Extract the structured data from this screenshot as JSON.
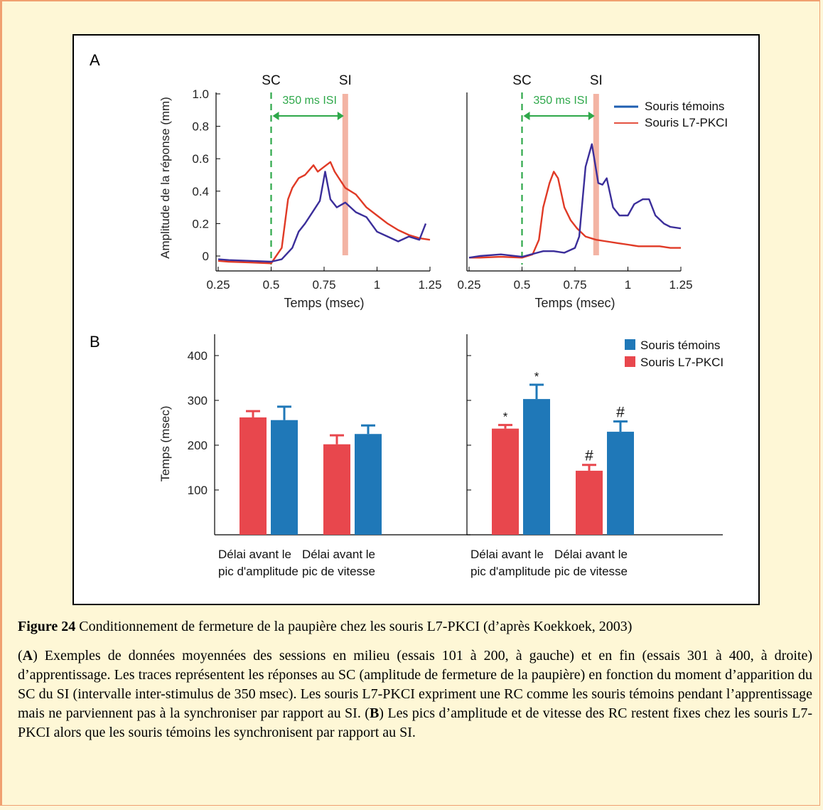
{
  "figure": {
    "panel_a_letter": "A",
    "panel_b_letter": "B",
    "cs_label": "SC",
    "us_label": "SI",
    "isi_label": "350 ms ISI"
  },
  "caption": {
    "title_bold": "Figure 24",
    "title_text": " Conditionnement de fermeture de la paupière chez les souris L7-PKCI (d’après Koekkoek, 2003)",
    "p1": "(",
    "a_letter": "A",
    "p2": ") Exemples de données moyennées des sessions en milieu (essais 101 à 200, à gauche) et en fin (essais 301 à 400, à droite) d’apprentissage. Les traces représentent les réponses au SC (amplitude de fermeture de la paupière) en fonction du moment d’apparition du SC du SI (intervalle inter-stimulus de 350 msec). Les souris L7-PKCI expriment une RC comme les souris témoins pendant l’apprentissage mais ne parviennent pas à la synchroniser par rapport au SI. (",
    "b_letter": "B",
    "p3": ") Les pics d’amplitude et de vitesse des RC restent fixes chez les souris L7-PKCI alors que les souris témoins les synchronisent par rapport au SI."
  },
  "chart_data": [
    {
      "type": "line",
      "panel": "A-left",
      "xlabel": "Temps (msec)",
      "ylabel": "Amplitude de la réponse (mm)",
      "xlim": [
        0.25,
        1.25
      ],
      "ylim": [
        -0.05,
        1.0
      ],
      "xticks": [
        "0.25",
        "0.5",
        "0.75",
        "1",
        "1.25"
      ],
      "yticks": [
        "1.0",
        "0.8",
        "0.6",
        "0.4",
        "0.2",
        "0"
      ],
      "cs_time": 0.5,
      "us_time": 0.85,
      "series": [
        {
          "name": "Souris témoins",
          "color": "#3b2e9a",
          "points": [
            [
              0.25,
              -0.02
            ],
            [
              0.3,
              -0.025
            ],
            [
              0.4,
              -0.03
            ],
            [
              0.5,
              -0.035
            ],
            [
              0.55,
              -0.02
            ],
            [
              0.6,
              0.05
            ],
            [
              0.63,
              0.15
            ],
            [
              0.66,
              0.2
            ],
            [
              0.7,
              0.28
            ],
            [
              0.73,
              0.34
            ],
            [
              0.755,
              0.52
            ],
            [
              0.78,
              0.35
            ],
            [
              0.81,
              0.3
            ],
            [
              0.85,
              0.33
            ],
            [
              0.9,
              0.27
            ],
            [
              0.95,
              0.24
            ],
            [
              1.0,
              0.15
            ],
            [
              1.05,
              0.12
            ],
            [
              1.1,
              0.09
            ],
            [
              1.15,
              0.12
            ],
            [
              1.2,
              0.1
            ],
            [
              1.23,
              0.2
            ]
          ]
        },
        {
          "name": "Souris L7-PKCI",
          "color": "#e03a26",
          "points": [
            [
              0.25,
              -0.03
            ],
            [
              0.3,
              -0.035
            ],
            [
              0.4,
              -0.04
            ],
            [
              0.5,
              -0.045
            ],
            [
              0.55,
              0.05
            ],
            [
              0.58,
              0.35
            ],
            [
              0.6,
              0.42
            ],
            [
              0.63,
              0.48
            ],
            [
              0.66,
              0.5
            ],
            [
              0.7,
              0.56
            ],
            [
              0.72,
              0.52
            ],
            [
              0.75,
              0.55
            ],
            [
              0.78,
              0.58
            ],
            [
              0.8,
              0.52
            ],
            [
              0.85,
              0.42
            ],
            [
              0.9,
              0.38
            ],
            [
              0.95,
              0.3
            ],
            [
              1.0,
              0.25
            ],
            [
              1.05,
              0.2
            ],
            [
              1.1,
              0.16
            ],
            [
              1.15,
              0.13
            ],
            [
              1.2,
              0.11
            ],
            [
              1.25,
              0.1
            ]
          ]
        }
      ]
    },
    {
      "type": "line",
      "panel": "A-right",
      "xlabel": "Temps (msec)",
      "xlim": [
        0.25,
        1.25
      ],
      "ylim": [
        -0.05,
        1.0
      ],
      "xticks": [
        "0.25",
        "0.5",
        "0.75",
        "1",
        "1.25"
      ],
      "cs_time": 0.5,
      "us_time": 0.85,
      "legend": [
        "Souris témoins",
        "Souris L7-PKCI"
      ],
      "series": [
        {
          "name": "Souris témoins",
          "color": "#3b2e9a",
          "points": [
            [
              0.25,
              -0.01
            ],
            [
              0.3,
              0.0
            ],
            [
              0.4,
              0.01
            ],
            [
              0.5,
              -0.005
            ],
            [
              0.6,
              0.03
            ],
            [
              0.65,
              0.03
            ],
            [
              0.7,
              0.02
            ],
            [
              0.75,
              0.05
            ],
            [
              0.77,
              0.12
            ],
            [
              0.8,
              0.55
            ],
            [
              0.83,
              0.69
            ],
            [
              0.86,
              0.45
            ],
            [
              0.88,
              0.44
            ],
            [
              0.9,
              0.48
            ],
            [
              0.93,
              0.3
            ],
            [
              0.96,
              0.25
            ],
            [
              1.0,
              0.25
            ],
            [
              1.03,
              0.32
            ],
            [
              1.07,
              0.35
            ],
            [
              1.1,
              0.35
            ],
            [
              1.13,
              0.25
            ],
            [
              1.17,
              0.2
            ],
            [
              1.2,
              0.18
            ],
            [
              1.25,
              0.17
            ]
          ]
        },
        {
          "name": "Souris L7-PKCI",
          "color": "#e03a26",
          "points": [
            [
              0.25,
              -0.01
            ],
            [
              0.3,
              -0.01
            ],
            [
              0.4,
              -0.005
            ],
            [
              0.5,
              -0.01
            ],
            [
              0.55,
              0.01
            ],
            [
              0.58,
              0.1
            ],
            [
              0.6,
              0.3
            ],
            [
              0.63,
              0.45
            ],
            [
              0.65,
              0.52
            ],
            [
              0.67,
              0.48
            ],
            [
              0.7,
              0.3
            ],
            [
              0.73,
              0.22
            ],
            [
              0.76,
              0.17
            ],
            [
              0.8,
              0.12
            ],
            [
              0.85,
              0.1
            ],
            [
              0.9,
              0.09
            ],
            [
              0.95,
              0.08
            ],
            [
              1.0,
              0.07
            ],
            [
              1.05,
              0.06
            ],
            [
              1.1,
              0.06
            ],
            [
              1.15,
              0.06
            ],
            [
              1.2,
              0.05
            ],
            [
              1.25,
              0.05
            ]
          ]
        }
      ]
    },
    {
      "type": "bar",
      "panel": "B-left",
      "ylabel": "Temps (msec)",
      "ylim": [
        0,
        400
      ],
      "yticks": [
        "400",
        "300",
        "200",
        "100"
      ],
      "categories": [
        "Délai avant le pic d'amplitude",
        "Délai avant le pic de vitesse"
      ],
      "category_lines": [
        [
          "Délai avant le",
          "pic d'amplitude"
        ],
        [
          "Délai avant le",
          "pic de vitesse"
        ]
      ],
      "series": [
        {
          "name": "Souris L7-PKCI",
          "color": "#e8474d",
          "values": [
            262,
            202
          ],
          "errors": [
            14,
            20
          ],
          "marks": [
            "",
            ""
          ]
        },
        {
          "name": "Souris témoins",
          "color": "#1f78b8",
          "values": [
            256,
            225
          ],
          "errors": [
            30,
            19
          ],
          "marks": [
            "",
            ""
          ]
        }
      ]
    },
    {
      "type": "bar",
      "panel": "B-right",
      "ylim": [
        0,
        400
      ],
      "categories": [
        "Délai avant le pic d'amplitude",
        "Délai avant le pic de vitesse"
      ],
      "category_lines": [
        [
          "Délai avant le",
          "pic d'amplitude"
        ],
        [
          "Délai avant le",
          "pic de vitesse"
        ]
      ],
      "legend": [
        "Souris témoins",
        "Souris L7-PKCI"
      ],
      "series": [
        {
          "name": "Souris L7-PKCI",
          "color": "#e8474d",
          "values": [
            237,
            143
          ],
          "errors": [
            8,
            13
          ],
          "marks": [
            "*",
            "#"
          ]
        },
        {
          "name": "Souris témoins",
          "color": "#1f78b8",
          "values": [
            303,
            230
          ],
          "errors": [
            32,
            23
          ],
          "marks": [
            "*",
            "#"
          ]
        }
      ]
    }
  ]
}
